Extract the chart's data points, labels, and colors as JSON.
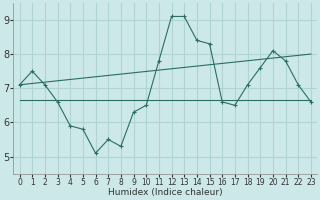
{
  "bg_color": "#cce8e8",
  "grid_color": "#b0d4d4",
  "line_color": "#2a6e62",
  "x_label": "Humidex (Indice chaleur)",
  "xlim": [
    -0.5,
    23.5
  ],
  "ylim": [
    4.5,
    9.5
  ],
  "yticks": [
    5,
    6,
    7,
    8,
    9
  ],
  "xticks": [
    0,
    1,
    2,
    3,
    4,
    5,
    6,
    7,
    8,
    9,
    10,
    11,
    12,
    13,
    14,
    15,
    16,
    17,
    18,
    19,
    20,
    21,
    22,
    23
  ],
  "line1_x": [
    0,
    1,
    2,
    3,
    4,
    5,
    6,
    7,
    8,
    9,
    10,
    11,
    12,
    13,
    14,
    15,
    16,
    17,
    18,
    19,
    20,
    21,
    22,
    23
  ],
  "line1_y": [
    7.1,
    7.5,
    7.1,
    6.6,
    5.9,
    5.8,
    5.1,
    5.5,
    5.3,
    6.3,
    6.5,
    7.8,
    9.1,
    9.1,
    8.4,
    8.3,
    6.6,
    6.5,
    7.1,
    7.6,
    8.1,
    7.8,
    7.1,
    6.6
  ],
  "line2_x": [
    0,
    23
  ],
  "line2_y": [
    7.1,
    8.0
  ],
  "line3_x": [
    0,
    23
  ],
  "line3_y": [
    6.65,
    6.65
  ]
}
